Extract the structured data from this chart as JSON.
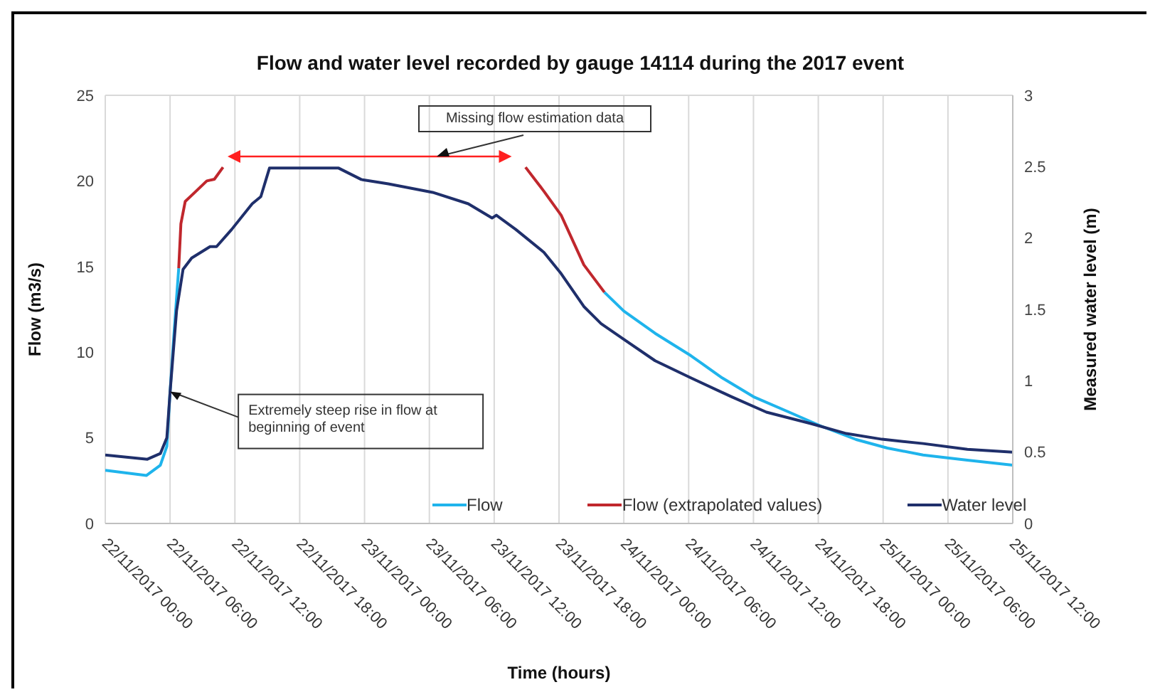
{
  "chart_data": {
    "type": "line",
    "title": "Flow and water level recorded by gauge 14114 during the 2017 event",
    "xlabel": "Time (hours)",
    "ylabel": "Flow (m3/s)",
    "y2label": "Measured water level (m)",
    "annotations": [
      {
        "text": "Extremely steep rise in flow at beginning of event",
        "x": "2017-11-22T06:00",
        "y": 7.7
      },
      "Missing flow estimation data"
    ],
    "xlim": [
      "2017-11-22T00:00",
      "2017-11-25T12:00"
    ],
    "xticks": [
      {
        "value": "2017-11-22T00:00",
        "label": "22/11/2017 00:00"
      },
      {
        "value": "2017-11-22T06:00",
        "label": "22/11/2017 06:00"
      },
      {
        "value": "2017-11-22T12:00",
        "label": "22/11/2017 12:00"
      },
      {
        "value": "2017-11-22T18:00",
        "label": "22/11/2017 18:00"
      },
      {
        "value": "2017-11-23T00:00",
        "label": "23/11/2017 00:00"
      },
      {
        "value": "2017-11-23T06:00",
        "label": "23/11/2017 06:00"
      },
      {
        "value": "2017-11-23T12:00",
        "label": "23/11/2017 12:00"
      },
      {
        "value": "2017-11-23T18:00",
        "label": "23/11/2017 18:00"
      },
      {
        "value": "2017-11-24T00:00",
        "label": "24/11/2017 00:00"
      },
      {
        "value": "2017-11-24T06:00",
        "label": "24/11/2017 06:00"
      },
      {
        "value": "2017-11-24T12:00",
        "label": "24/11/2017 12:00"
      },
      {
        "value": "2017-11-24T18:00",
        "label": "24/11/2017 18:00"
      },
      {
        "value": "2017-11-25T00:00",
        "label": "25/11/2017 00:00"
      },
      {
        "value": "2017-11-25T06:00",
        "label": "25/11/2017 06:00"
      },
      {
        "value": "2017-11-25T12:00",
        "label": "25/11/2017 12:00"
      }
    ],
    "ylim": [
      0,
      25
    ],
    "yticks": [
      0,
      5,
      10,
      15,
      20,
      25
    ],
    "y2lim": [
      0,
      3
    ],
    "y2ticks": [
      0,
      0.5,
      1,
      1.5,
      2,
      2.5,
      3
    ],
    "grid": true,
    "legend": "bottom right",
    "marker": "none",
    "line_style": "solid",
    "series": [
      {
        "name": "Flow",
        "color": "#1fb4ec",
        "x": [
          "2017-11-22T00:00",
          "2017-11-22T03:48",
          "2017-11-22T05:06",
          "2017-11-22T05:42",
          "2017-11-22T06:00",
          "2017-11-22T06:24",
          "2017-11-22T06:48",
          "2017-11-23T00:00",
          "2017-11-23T22:12",
          "2017-11-24T00:00",
          "2017-11-24T02:54",
          "2017-11-24T06:12",
          "2017-11-24T09:06",
          "2017-11-24T12:00",
          "2017-11-24T15:18",
          "2017-11-24T18:12",
          "2017-11-24T21:30",
          "2017-11-25T00:24",
          "2017-11-25T03:42",
          "2017-11-25T07:48",
          "2017-11-25T12:00"
        ],
        "values": [
          3.1,
          2.8,
          3.4,
          4.5,
          7.7,
          11.4,
          14.9,
          null,
          13.5,
          12.4,
          11.1,
          9.8,
          8.5,
          7.4,
          6.5,
          5.7,
          4.9,
          4.4,
          4.0,
          3.7,
          3.4
        ]
      },
      {
        "name": "Flow (extrapolated values)",
        "color": "#c0272d",
        "x": [
          "2017-11-22T06:48",
          "2017-11-22T07:00",
          "2017-11-22T07:24",
          "2017-11-22T08:24",
          "2017-11-22T09:24",
          "2017-11-22T10:06",
          "2017-11-22T10:54",
          "2017-11-23T00:00",
          "2017-11-23T14:54",
          "2017-11-23T16:36",
          "2017-11-23T18:12",
          "2017-11-23T20:18",
          "2017-11-23T22:12"
        ],
        "values": [
          14.9,
          17.5,
          18.8,
          19.4,
          20.0,
          20.1,
          20.8,
          null,
          20.8,
          19.4,
          18.0,
          15.1,
          13.5
        ]
      },
      {
        "name": "Water level",
        "color": "#1f2f6b",
        "axis": "y2",
        "x": [
          "2017-11-22T00:00",
          "2017-11-22T03:54",
          "2017-11-22T05:06",
          "2017-11-22T05:42",
          "2017-11-22T06:00",
          "2017-11-22T06:36",
          "2017-11-22T07:12",
          "2017-11-22T08:00",
          "2017-11-22T09:42",
          "2017-11-22T10:18",
          "2017-11-22T11:42",
          "2017-11-22T13:36",
          "2017-11-22T14:24",
          "2017-11-22T15:12",
          "2017-11-22T21:36",
          "2017-11-22T23:42",
          "2017-11-23T02:12",
          "2017-11-23T06:18",
          "2017-11-23T09:36",
          "2017-11-23T11:48",
          "2017-11-23T12:12",
          "2017-11-23T14:00",
          "2017-11-23T16:36",
          "2017-11-23T18:12",
          "2017-11-23T20:18",
          "2017-11-23T21:54",
          "2017-11-24T00:00",
          "2017-11-24T02:54",
          "2017-11-24T06:12",
          "2017-11-24T09:54",
          "2017-11-24T13:12",
          "2017-11-24T17:18",
          "2017-11-24T20:36",
          "2017-11-24T23:54",
          "2017-11-25T03:42",
          "2017-11-25T07:48",
          "2017-11-25T12:00"
        ],
        "values": [
          0.48,
          0.45,
          0.49,
          0.6,
          0.92,
          1.49,
          1.78,
          1.86,
          1.94,
          1.94,
          2.06,
          2.24,
          2.29,
          2.49,
          2.49,
          2.41,
          2.38,
          2.32,
          2.24,
          2.14,
          2.16,
          2.06,
          1.9,
          1.75,
          1.52,
          1.4,
          1.29,
          1.14,
          1.02,
          0.89,
          0.78,
          0.7,
          0.63,
          0.59,
          0.56,
          0.52,
          0.5
        ]
      }
    ]
  }
}
